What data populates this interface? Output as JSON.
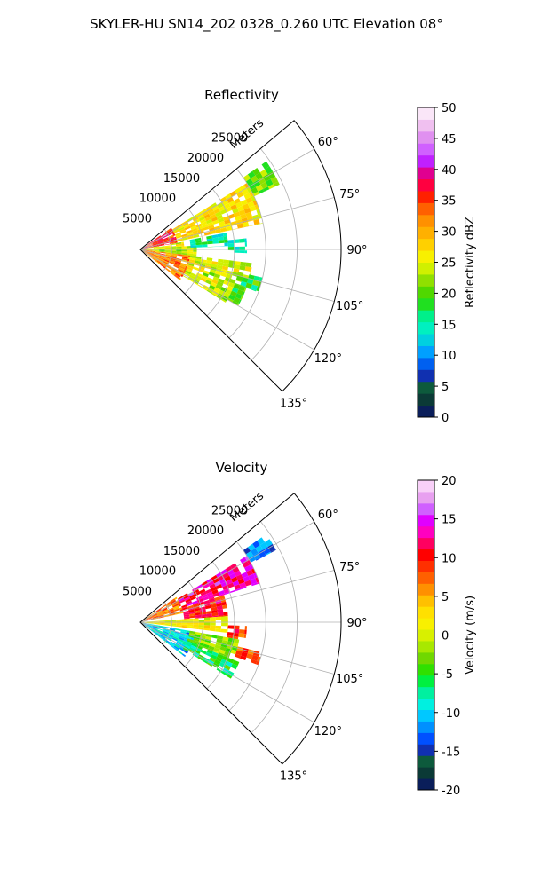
{
  "title": "SKYLER-HU  SN14_202  0328_0.260 UTC Elevation 08°",
  "chart_data": [
    {
      "type": "polar_sector",
      "title": "Reflectivity",
      "r_label": "Meters",
      "r_ticks": [
        5000,
        10000,
        15000,
        20000,
        25000
      ],
      "r_max": 32000,
      "theta_range_deg": [
        50,
        135
      ],
      "theta_ticks": [
        "60°",
        "75°",
        "90°",
        "105°",
        "120°",
        "135°"
      ],
      "theta_tick_values": [
        60,
        75,
        90,
        105,
        120,
        135
      ],
      "grid": true,
      "colorbar": {
        "label": "Reflectivity dBZ",
        "min": 0,
        "max": 50,
        "ticks": [
          0,
          5,
          10,
          15,
          20,
          25,
          30,
          35,
          40,
          45,
          50
        ],
        "colors": [
          "#0a1e5a",
          "#0b3a36",
          "#0d5a3c",
          "#1030b0",
          "#0060f0",
          "#00a0ff",
          "#00d0e0",
          "#00f0c0",
          "#00f08a",
          "#20e020",
          "#50d800",
          "#90e000",
          "#d0f000",
          "#f8f000",
          "#ffd000",
          "#ffb000",
          "#ff9000",
          "#ff6000",
          "#ff2000",
          "#ff0040",
          "#e00090",
          "#c020ff",
          "#d060ff",
          "#e090f0",
          "#f0c0f0",
          "#fae6f8"
        ]
      },
      "echo_regions": [
        {
          "r": [
            300,
            6000
          ],
          "theta": [
            55,
            80
          ],
          "value": 36
        },
        {
          "r": [
            300,
            7000
          ],
          "theta": [
            80,
            86
          ],
          "value": 26
        },
        {
          "r": [
            300,
            9000
          ],
          "theta": [
            86,
            97
          ],
          "value": 24
        },
        {
          "r": [
            500,
            8000
          ],
          "theta": [
            97,
            128
          ],
          "value": 32
        },
        {
          "r": [
            6000,
            20000
          ],
          "theta": [
            58,
            78
          ],
          "value": 27
        },
        {
          "r": [
            20000,
            24500
          ],
          "theta": [
            55,
            65
          ],
          "value": 21
        },
        {
          "r": [
            8000,
            14000
          ],
          "theta": [
            79,
            88
          ],
          "value": 16
        },
        {
          "r": [
            14000,
            17000
          ],
          "theta": [
            84,
            92
          ],
          "value": 15
        },
        {
          "r": [
            8000,
            18000
          ],
          "theta": [
            97,
            108
          ],
          "value": 25
        },
        {
          "r": [
            16000,
            20000
          ],
          "theta": [
            103,
            110
          ],
          "value": 18
        },
        {
          "r": [
            8000,
            16000
          ],
          "theta": [
            108,
            122
          ],
          "value": 24
        },
        {
          "r": [
            16000,
            18000
          ],
          "theta": [
            110,
            120
          ],
          "value": 20
        }
      ]
    },
    {
      "type": "polar_sector",
      "title": "Velocity",
      "r_label": "Meters",
      "r_ticks": [
        5000,
        10000,
        15000,
        20000,
        25000
      ],
      "r_max": 32000,
      "theta_range_deg": [
        50,
        135
      ],
      "theta_ticks": [
        "60°",
        "75°",
        "90°",
        "105°",
        "120°",
        "135°"
      ],
      "theta_tick_values": [
        60,
        75,
        90,
        105,
        120,
        135
      ],
      "grid": true,
      "colorbar": {
        "label": "Velocity (m/s)",
        "min": -20,
        "max": 20,
        "ticks": [
          -20,
          -15,
          -10,
          -5,
          0,
          5,
          10,
          15,
          20
        ],
        "colors": [
          "#0a1e5a",
          "#0b3a36",
          "#0d5a3c",
          "#1030b0",
          "#0050ff",
          "#0090ff",
          "#00c8ff",
          "#00f0e0",
          "#00f0a0",
          "#00f040",
          "#30e000",
          "#70d800",
          "#a8e800",
          "#d8f000",
          "#f8f000",
          "#ffe000",
          "#ffc000",
          "#ff9000",
          "#ff6000",
          "#ff3000",
          "#ff0000",
          "#ff0060",
          "#ff00c0",
          "#e000ff",
          "#d060ff",
          "#e8a0f0",
          "#f8d0f8"
        ]
      },
      "echo_regions": [
        {
          "r": [
            300,
            7000
          ],
          "theta": [
            55,
            78
          ],
          "value": 7
        },
        {
          "r": [
            7000,
            20000
          ],
          "theta": [
            58,
            72
          ],
          "value": 13
        },
        {
          "r": [
            20000,
            24500
          ],
          "theta": [
            55,
            62
          ],
          "value": -12
        },
        {
          "r": [
            7000,
            14000
          ],
          "theta": [
            72,
            86
          ],
          "value": 10
        },
        {
          "r": [
            300,
            14000
          ],
          "theta": [
            86,
            97
          ],
          "value": 1
        },
        {
          "r": [
            14000,
            17000
          ],
          "theta": [
            92,
            100
          ],
          "value": 9
        },
        {
          "r": [
            300,
            9000
          ],
          "theta": [
            100,
            128
          ],
          "value": -10
        },
        {
          "r": [
            8000,
            16000
          ],
          "theta": [
            100,
            112
          ],
          "value": -2
        },
        {
          "r": [
            16000,
            20000
          ],
          "theta": [
            104,
            110
          ],
          "value": 8
        },
        {
          "r": [
            8000,
            17000
          ],
          "theta": [
            112,
            122
          ],
          "value": -6
        }
      ]
    }
  ]
}
